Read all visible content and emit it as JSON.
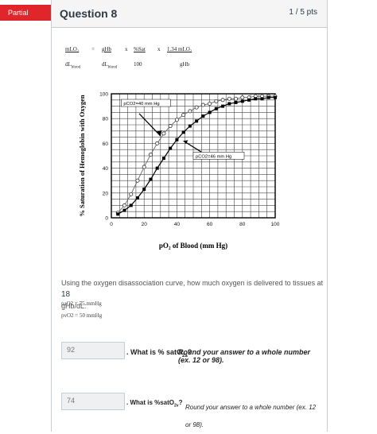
{
  "header": {
    "badge": "Partial",
    "question_title": "Question 8",
    "points": "1 / 5 pts"
  },
  "formula": {
    "term1_num": "mLO₂",
    "term1_den": "dL",
    "term1_den_sub": "blood",
    "eq": "=",
    "term2_num": "gHb",
    "term2_den": "dL",
    "term2_den_sub": "blood",
    "times1": "x",
    "term3_num": "%Sat",
    "term3_den": "100",
    "times2": "x",
    "term4_num": "1.34 mLO₂",
    "term4_den": "gHb"
  },
  "chart_data": {
    "type": "line",
    "xlabel": "pO₂ of Blood (mm Hg)",
    "ylabel": "% Saturation of Hemoglobin with Oxygen",
    "xlim": [
      0,
      100
    ],
    "ylim": [
      0,
      100
    ],
    "xticks": [
      0,
      20,
      40,
      60,
      80,
      100
    ],
    "yticks": [
      0,
      20,
      40,
      60,
      80,
      100
    ],
    "grid": true,
    "series": [
      {
        "name": "pCO2=40 mm Hg",
        "marker": "open-circle",
        "x": [
          4,
          8,
          12,
          16,
          20,
          24,
          28,
          32,
          36,
          40,
          44,
          48,
          52,
          56,
          60,
          64,
          68,
          72,
          76,
          80,
          84,
          88,
          92,
          96,
          100
        ],
        "y": [
          4,
          10,
          19,
          30,
          41,
          51,
          60,
          68,
          74,
          79,
          83,
          86,
          89,
          91,
          92,
          94,
          95,
          96,
          96,
          97,
          97,
          98,
          98,
          98,
          98
        ]
      },
      {
        "name": "pCO2=46 mm Hg",
        "marker": "filled-square",
        "x": [
          4,
          8,
          12,
          16,
          20,
          24,
          28,
          32,
          36,
          40,
          44,
          48,
          52,
          56,
          60,
          64,
          68,
          72,
          76,
          80,
          84,
          88,
          92,
          96,
          100
        ],
        "y": [
          3,
          6,
          10,
          16,
          23,
          31,
          40,
          48,
          56,
          63,
          69,
          74,
          78,
          82,
          85,
          88,
          90,
          92,
          93,
          94,
          95,
          96,
          96,
          97,
          97
        ]
      }
    ],
    "annotations": [
      "pCO2=40 mm Hg",
      "pCO2=46 mm Hg"
    ]
  },
  "prompt": {
    "text": "Using the oxygen disassociation curve, how much oxygen is delivered to tissues at",
    "value": "18",
    "unit": "gHb/dL:",
    "pao2": "paO2 = 75 mmHg",
    "pvo2": "pvO2 = 50 mmHg"
  },
  "answers": {
    "a1_value": "92",
    "a1_q_prefix": ". What is % satO",
    "a1_q_sub": "2a",
    "a1_q_rest": "?",
    "a1_q_italic": "Round your answer to a whole number (ex. 12 or 98).",
    "a2_value": "74",
    "a2_q_prefix": ". What is %satO",
    "a2_q_sub": "2v",
    "a2_q_rest": "?",
    "a2_q_italic": "Round your answer to a whole number (ex. 12 or 98)."
  }
}
